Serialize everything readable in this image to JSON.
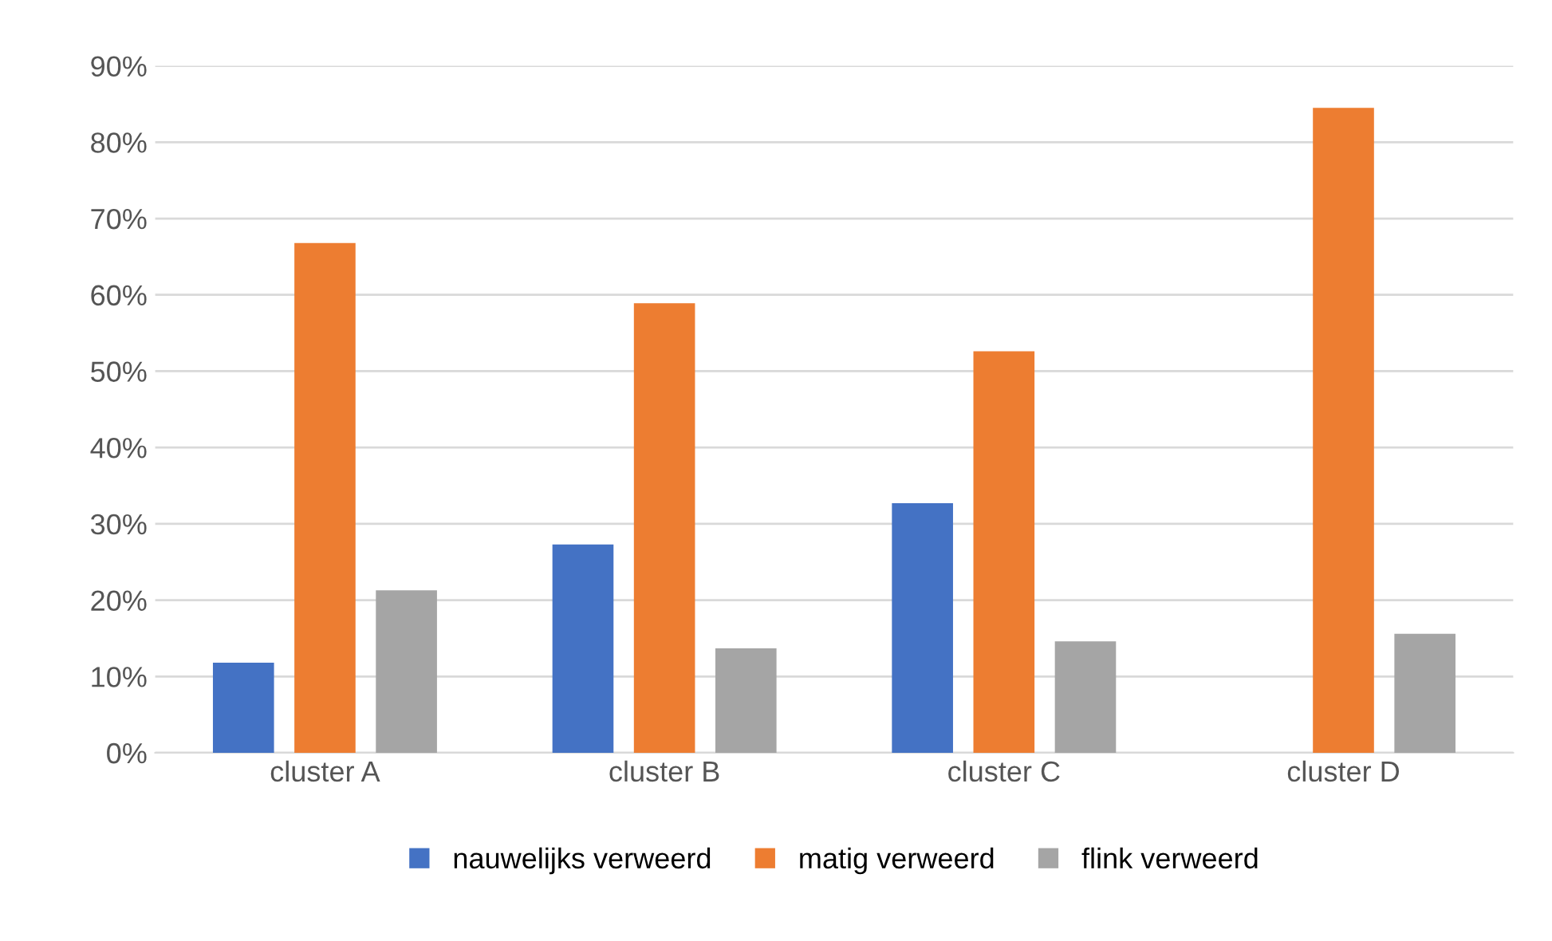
{
  "chart_data": {
    "type": "bar",
    "categories": [
      "cluster A",
      "cluster B",
      "cluster C",
      "cluster D"
    ],
    "series": [
      {
        "name": "nauwelijks verweerd",
        "color": "#4472c4",
        "values": [
          11.8,
          27.3,
          32.7,
          0
        ]
      },
      {
        "name": "matig verweerd",
        "color": "#ed7d31",
        "values": [
          66.8,
          58.9,
          52.6,
          84.5
        ]
      },
      {
        "name": "flink verweerd",
        "color": "#a5a5a5",
        "values": [
          21.3,
          13.7,
          14.6,
          15.6
        ]
      }
    ],
    "ylim": [
      0,
      90
    ],
    "yticks": [
      {
        "value": 0,
        "label": "0%"
      },
      {
        "value": 10,
        "label": "10%"
      },
      {
        "value": 20,
        "label": "20%"
      },
      {
        "value": 30,
        "label": "30%"
      },
      {
        "value": 40,
        "label": "40%"
      },
      {
        "value": 50,
        "label": "50%"
      },
      {
        "value": 60,
        "label": "60%"
      },
      {
        "value": 70,
        "label": "70%"
      },
      {
        "value": 80,
        "label": "80%"
      },
      {
        "value": 90,
        "label": "90%"
      }
    ],
    "grid": "y",
    "legend": "bottom"
  }
}
